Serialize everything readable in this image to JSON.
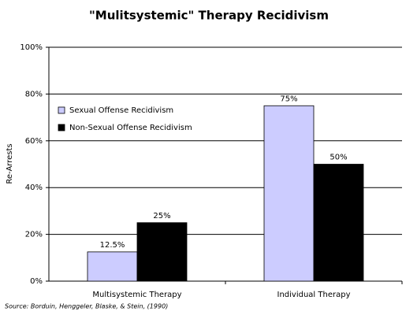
{
  "chart_data": {
    "type": "bar",
    "title": "\"Mulitsystemic\" Therapy Recidivism",
    "y_label": "Re-Arrests",
    "source": "Source: Borduin, Henggeler, Blaske, & Stein, (1990)",
    "categories": [
      "Multisystemic Therapy",
      "Individual Therapy"
    ],
    "series": [
      {
        "name": "Sexual Offense Recidivism",
        "color": "#ccccff",
        "values": [
          12.5,
          75
        ],
        "value_labels": [
          "12.5%",
          "75%"
        ]
      },
      {
        "name": "Non-Sexual Offense Recidivism",
        "color": "#000000",
        "values": [
          25,
          50
        ],
        "value_labels": [
          "25%",
          "50%"
        ]
      }
    ],
    "ylim": [
      0,
      100
    ],
    "yticks": [
      {
        "value": 0,
        "label": "0%"
      },
      {
        "value": 20,
        "label": "20%"
      },
      {
        "value": 40,
        "label": "40%"
      },
      {
        "value": 60,
        "label": "60%"
      },
      {
        "value": 80,
        "label": "80%"
      },
      {
        "value": 100,
        "label": "100%"
      }
    ],
    "grid": true,
    "legend": "upper-left"
  }
}
